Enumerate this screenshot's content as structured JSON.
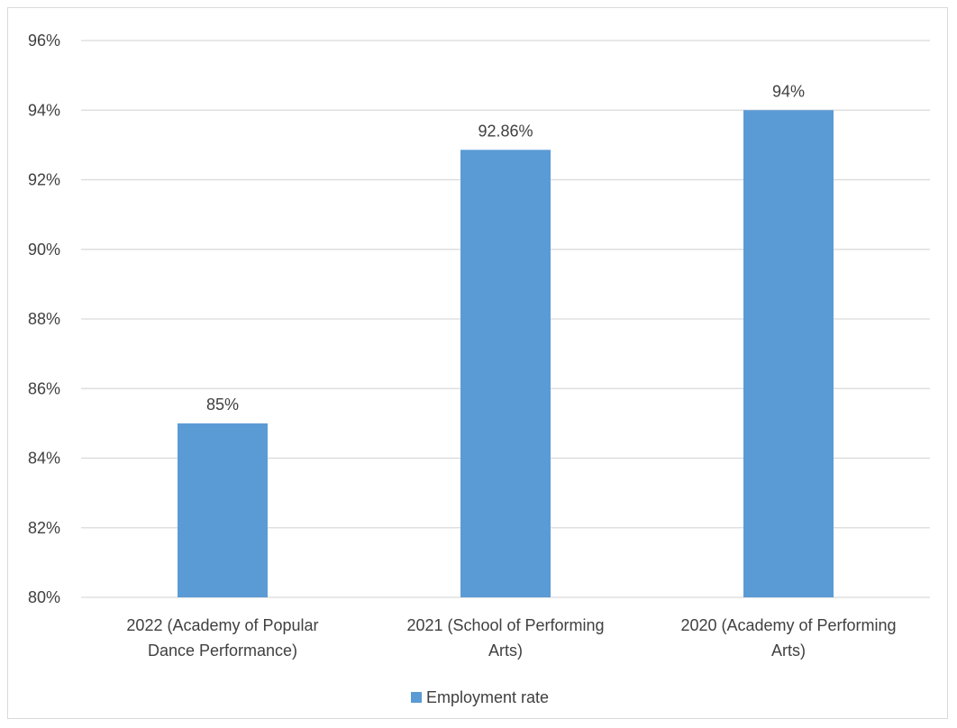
{
  "chart_data": {
    "type": "bar",
    "categories": [
      [
        "2022 (Academy of Popular",
        "Dance Performance)"
      ],
      [
        "2021 (School of Performing",
        "Arts)"
      ],
      [
        "2020 (Academy of Performing",
        "Arts)"
      ]
    ],
    "series": [
      {
        "name": "Employment rate",
        "values": [
          85,
          92.86,
          94
        ],
        "data_labels": [
          "85%",
          "92.86%",
          "94%"
        ],
        "color": "#5b9bd5"
      }
    ],
    "y_ticks": [
      "80%",
      "82%",
      "84%",
      "86%",
      "88%",
      "90%",
      "92%",
      "94%",
      "96%"
    ],
    "ylim": [
      80,
      96
    ],
    "y_step": 2,
    "grid": true,
    "gridline_color": "#d9d9d9",
    "legend_position": "bottom",
    "title": "",
    "xlabel": "",
    "ylabel": ""
  }
}
